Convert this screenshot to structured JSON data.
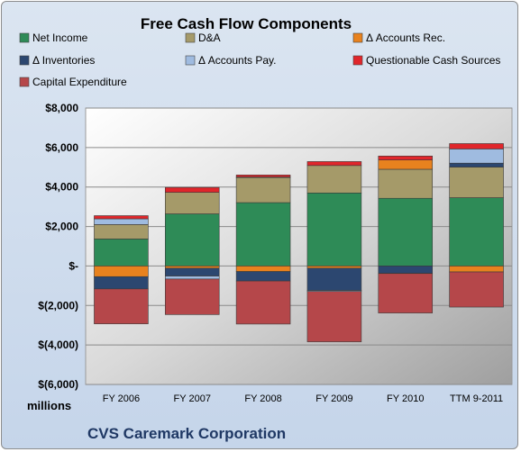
{
  "chart_data": {
    "type": "bar",
    "stacked": true,
    "title": "Free Cash Flow Components",
    "categories": [
      "FY 2006",
      "FY 2007",
      "FY 2008",
      "FY 2009",
      "FY 2010",
      "TTM 9-2011"
    ],
    "series": [
      {
        "name": "Net Income",
        "color": "#2e8b57",
        "values": [
          1370,
          2640,
          3210,
          3700,
          3430,
          3460
        ]
      },
      {
        "name": "D&A",
        "color": "#a59a69",
        "values": [
          730,
          1090,
          1270,
          1390,
          1470,
          1550
        ]
      },
      {
        "name": "Δ Accounts Rec.",
        "color": "#e8821e",
        "values": [
          -540,
          -110,
          -280,
          -110,
          470,
          -300
        ]
      },
      {
        "name": "Δ Inventories",
        "color": "#2c4770",
        "values": [
          -620,
          -400,
          -480,
          -1130,
          -370,
          200
        ]
      },
      {
        "name": "Δ Accounts Pay.",
        "color": "#9fbbe0",
        "values": [
          290,
          -150,
          30,
          -50,
          -10,
          720
        ]
      },
      {
        "name": "Questionable Cash Sources",
        "color": "#e0262b",
        "values": [
          160,
          250,
          100,
          200,
          200,
          270
        ]
      },
      {
        "name": "Capital Expenditure",
        "color": "#b5474a",
        "values": [
          -1770,
          -1800,
          -2180,
          -2550,
          -2000,
          -1780
        ]
      }
    ],
    "ylim": [
      -6000,
      8000
    ],
    "yticks": [
      8000,
      6000,
      4000,
      2000,
      0,
      -2000,
      -4000,
      -6000
    ],
    "ytick_labels": [
      "$8,000",
      "$6,000",
      "$4,000",
      "$2,000",
      "$-",
      "$(2,000)",
      "$(4,000)",
      "$(6,000)"
    ],
    "grid": true,
    "legend_position": "top",
    "unit_label": "millions",
    "company_label": "CVS Caremark Corporation"
  }
}
